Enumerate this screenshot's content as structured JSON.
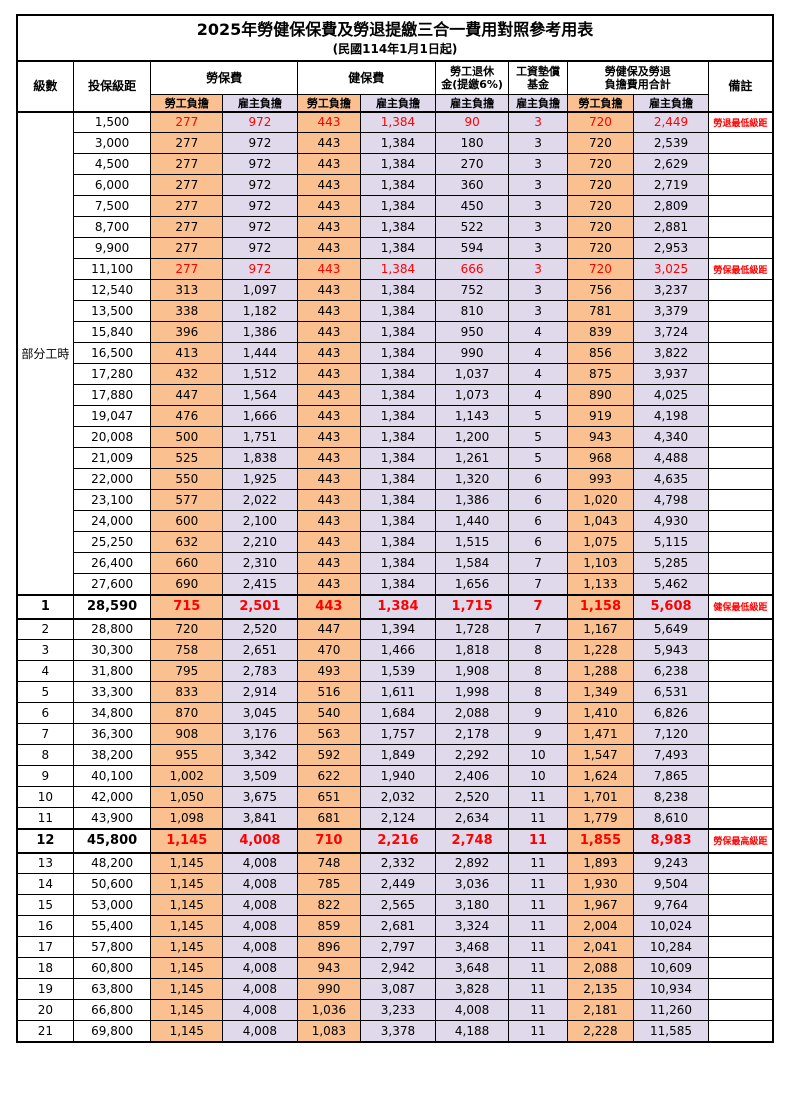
{
  "title": "2025年勞健保保費及勞退提繳三合一費用對照參考用表",
  "subtitle": "(民國114年1月1日起)",
  "colors": {
    "employee_bg": "#FAC090",
    "employer_bg": "#E0D9EB",
    "highlight_text": "#FF0000"
  },
  "header": {
    "level": "級數",
    "bracket": "投保級距",
    "labor_ins": "勞保費",
    "health_ins": "健保費",
    "pension_line1": "勞工退休",
    "pension_line2": "金(提繳6%)",
    "fund_line1": "工資墊償",
    "fund_line2": "基金",
    "total_line1": "勞健保及勞退",
    "total_line2": "負擔費用合計",
    "remark": "備註",
    "employee": "勞工負擔",
    "employer": "雇主負擔"
  },
  "part_time_label": "部分工時",
  "rows": [
    {
      "lv": "部分工時",
      "lvspan": 23,
      "br": "1,500",
      "a": "277",
      "b": "972",
      "c": "443",
      "d": "1,384",
      "e": "90",
      "f": "3",
      "g": "720",
      "h": "2,449",
      "rm": "勞退最低級距",
      "hl": true
    },
    {
      "br": "3,000",
      "a": "277",
      "b": "972",
      "c": "443",
      "d": "1,384",
      "e": "180",
      "f": "3",
      "g": "720",
      "h": "2,539",
      "rm": ""
    },
    {
      "br": "4,500",
      "a": "277",
      "b": "972",
      "c": "443",
      "d": "1,384",
      "e": "270",
      "f": "3",
      "g": "720",
      "h": "2,629",
      "rm": ""
    },
    {
      "br": "6,000",
      "a": "277",
      "b": "972",
      "c": "443",
      "d": "1,384",
      "e": "360",
      "f": "3",
      "g": "720",
      "h": "2,719",
      "rm": ""
    },
    {
      "br": "7,500",
      "a": "277",
      "b": "972",
      "c": "443",
      "d": "1,384",
      "e": "450",
      "f": "3",
      "g": "720",
      "h": "2,809",
      "rm": ""
    },
    {
      "br": "8,700",
      "a": "277",
      "b": "972",
      "c": "443",
      "d": "1,384",
      "e": "522",
      "f": "3",
      "g": "720",
      "h": "2,881",
      "rm": ""
    },
    {
      "br": "9,900",
      "a": "277",
      "b": "972",
      "c": "443",
      "d": "1,384",
      "e": "594",
      "f": "3",
      "g": "720",
      "h": "2,953",
      "rm": ""
    },
    {
      "br": "11,100",
      "a": "277",
      "b": "972",
      "c": "443",
      "d": "1,384",
      "e": "666",
      "f": "3",
      "g": "720",
      "h": "3,025",
      "rm": "勞保最低級距",
      "hl": true
    },
    {
      "br": "12,540",
      "a": "313",
      "b": "1,097",
      "c": "443",
      "d": "1,384",
      "e": "752",
      "f": "3",
      "g": "756",
      "h": "3,237",
      "rm": ""
    },
    {
      "br": "13,500",
      "a": "338",
      "b": "1,182",
      "c": "443",
      "d": "1,384",
      "e": "810",
      "f": "3",
      "g": "781",
      "h": "3,379",
      "rm": ""
    },
    {
      "br": "15,840",
      "a": "396",
      "b": "1,386",
      "c": "443",
      "d": "1,384",
      "e": "950",
      "f": "4",
      "g": "839",
      "h": "3,724",
      "rm": ""
    },
    {
      "br": "16,500",
      "a": "413",
      "b": "1,444",
      "c": "443",
      "d": "1,384",
      "e": "990",
      "f": "4",
      "g": "856",
      "h": "3,822",
      "rm": ""
    },
    {
      "br": "17,280",
      "a": "432",
      "b": "1,512",
      "c": "443",
      "d": "1,384",
      "e": "1,037",
      "f": "4",
      "g": "875",
      "h": "3,937",
      "rm": ""
    },
    {
      "br": "17,880",
      "a": "447",
      "b": "1,564",
      "c": "443",
      "d": "1,384",
      "e": "1,073",
      "f": "4",
      "g": "890",
      "h": "4,025",
      "rm": ""
    },
    {
      "br": "19,047",
      "a": "476",
      "b": "1,666",
      "c": "443",
      "d": "1,384",
      "e": "1,143",
      "f": "5",
      "g": "919",
      "h": "4,198",
      "rm": ""
    },
    {
      "br": "20,008",
      "a": "500",
      "b": "1,751",
      "c": "443",
      "d": "1,384",
      "e": "1,200",
      "f": "5",
      "g": "943",
      "h": "4,340",
      "rm": ""
    },
    {
      "br": "21,009",
      "a": "525",
      "b": "1,838",
      "c": "443",
      "d": "1,384",
      "e": "1,261",
      "f": "5",
      "g": "968",
      "h": "4,488",
      "rm": ""
    },
    {
      "br": "22,000",
      "a": "550",
      "b": "1,925",
      "c": "443",
      "d": "1,384",
      "e": "1,320",
      "f": "6",
      "g": "993",
      "h": "4,635",
      "rm": ""
    },
    {
      "br": "23,100",
      "a": "577",
      "b": "2,022",
      "c": "443",
      "d": "1,384",
      "e": "1,386",
      "f": "6",
      "g": "1,020",
      "h": "4,798",
      "rm": ""
    },
    {
      "br": "24,000",
      "a": "600",
      "b": "2,100",
      "c": "443",
      "d": "1,384",
      "e": "1,440",
      "f": "6",
      "g": "1,043",
      "h": "4,930",
      "rm": ""
    },
    {
      "br": "25,250",
      "a": "632",
      "b": "2,210",
      "c": "443",
      "d": "1,384",
      "e": "1,515",
      "f": "6",
      "g": "1,075",
      "h": "5,115",
      "rm": ""
    },
    {
      "br": "26,400",
      "a": "660",
      "b": "2,310",
      "c": "443",
      "d": "1,384",
      "e": "1,584",
      "f": "7",
      "g": "1,103",
      "h": "5,285",
      "rm": ""
    },
    {
      "br": "27,600",
      "a": "690",
      "b": "2,415",
      "c": "443",
      "d": "1,384",
      "e": "1,656",
      "f": "7",
      "g": "1,133",
      "h": "5,462",
      "rm": ""
    },
    {
      "lv": "1",
      "br": "28,590",
      "a": "715",
      "b": "2,501",
      "c": "443",
      "d": "1,384",
      "e": "1,715",
      "f": "7",
      "g": "1,158",
      "h": "5,608",
      "rm": "健保最低級距",
      "hl": true,
      "bold": true,
      "thick": true
    },
    {
      "lv": "2",
      "br": "28,800",
      "a": "720",
      "b": "2,520",
      "c": "447",
      "d": "1,394",
      "e": "1,728",
      "f": "7",
      "g": "1,167",
      "h": "5,649",
      "rm": ""
    },
    {
      "lv": "3",
      "br": "30,300",
      "a": "758",
      "b": "2,651",
      "c": "470",
      "d": "1,466",
      "e": "1,818",
      "f": "8",
      "g": "1,228",
      "h": "5,943",
      "rm": ""
    },
    {
      "lv": "4",
      "br": "31,800",
      "a": "795",
      "b": "2,783",
      "c": "493",
      "d": "1,539",
      "e": "1,908",
      "f": "8",
      "g": "1,288",
      "h": "6,238",
      "rm": ""
    },
    {
      "lv": "5",
      "br": "33,300",
      "a": "833",
      "b": "2,914",
      "c": "516",
      "d": "1,611",
      "e": "1,998",
      "f": "8",
      "g": "1,349",
      "h": "6,531",
      "rm": ""
    },
    {
      "lv": "6",
      "br": "34,800",
      "a": "870",
      "b": "3,045",
      "c": "540",
      "d": "1,684",
      "e": "2,088",
      "f": "9",
      "g": "1,410",
      "h": "6,826",
      "rm": ""
    },
    {
      "lv": "7",
      "br": "36,300",
      "a": "908",
      "b": "3,176",
      "c": "563",
      "d": "1,757",
      "e": "2,178",
      "f": "9",
      "g": "1,471",
      "h": "7,120",
      "rm": ""
    },
    {
      "lv": "8",
      "br": "38,200",
      "a": "955",
      "b": "3,342",
      "c": "592",
      "d": "1,849",
      "e": "2,292",
      "f": "10",
      "g": "1,547",
      "h": "7,493",
      "rm": ""
    },
    {
      "lv": "9",
      "br": "40,100",
      "a": "1,002",
      "b": "3,509",
      "c": "622",
      "d": "1,940",
      "e": "2,406",
      "f": "10",
      "g": "1,624",
      "h": "7,865",
      "rm": ""
    },
    {
      "lv": "10",
      "br": "42,000",
      "a": "1,050",
      "b": "3,675",
      "c": "651",
      "d": "2,032",
      "e": "2,520",
      "f": "11",
      "g": "1,701",
      "h": "8,238",
      "rm": ""
    },
    {
      "lv": "11",
      "br": "43,900",
      "a": "1,098",
      "b": "3,841",
      "c": "681",
      "d": "2,124",
      "e": "2,634",
      "f": "11",
      "g": "1,779",
      "h": "8,610",
      "rm": ""
    },
    {
      "lv": "12",
      "br": "45,800",
      "a": "1,145",
      "b": "4,008",
      "c": "710",
      "d": "2,216",
      "e": "2,748",
      "f": "11",
      "g": "1,855",
      "h": "8,983",
      "rm": "勞保最高級距",
      "hl": true,
      "bold": true,
      "thick": true
    },
    {
      "lv": "13",
      "br": "48,200",
      "a": "1,145",
      "b": "4,008",
      "c": "748",
      "d": "2,332",
      "e": "2,892",
      "f": "11",
      "g": "1,893",
      "h": "9,243",
      "rm": ""
    },
    {
      "lv": "14",
      "br": "50,600",
      "a": "1,145",
      "b": "4,008",
      "c": "785",
      "d": "2,449",
      "e": "3,036",
      "f": "11",
      "g": "1,930",
      "h": "9,504",
      "rm": ""
    },
    {
      "lv": "15",
      "br": "53,000",
      "a": "1,145",
      "b": "4,008",
      "c": "822",
      "d": "2,565",
      "e": "3,180",
      "f": "11",
      "g": "1,967",
      "h": "9,764",
      "rm": ""
    },
    {
      "lv": "16",
      "br": "55,400",
      "a": "1,145",
      "b": "4,008",
      "c": "859",
      "d": "2,681",
      "e": "3,324",
      "f": "11",
      "g": "2,004",
      "h": "10,024",
      "rm": ""
    },
    {
      "lv": "17",
      "br": "57,800",
      "a": "1,145",
      "b": "4,008",
      "c": "896",
      "d": "2,797",
      "e": "3,468",
      "f": "11",
      "g": "2,041",
      "h": "10,284",
      "rm": ""
    },
    {
      "lv": "18",
      "br": "60,800",
      "a": "1,145",
      "b": "4,008",
      "c": "943",
      "d": "2,942",
      "e": "3,648",
      "f": "11",
      "g": "2,088",
      "h": "10,609",
      "rm": ""
    },
    {
      "lv": "19",
      "br": "63,800",
      "a": "1,145",
      "b": "4,008",
      "c": "990",
      "d": "3,087",
      "e": "3,828",
      "f": "11",
      "g": "2,135",
      "h": "10,934",
      "rm": ""
    },
    {
      "lv": "20",
      "br": "66,800",
      "a": "1,145",
      "b": "4,008",
      "c": "1,036",
      "d": "3,233",
      "e": "4,008",
      "f": "11",
      "g": "2,181",
      "h": "11,260",
      "rm": ""
    },
    {
      "lv": "21",
      "br": "69,800",
      "a": "1,145",
      "b": "4,008",
      "c": "1,083",
      "d": "3,378",
      "e": "4,188",
      "f": "11",
      "g": "2,228",
      "h": "11,585",
      "rm": ""
    }
  ]
}
